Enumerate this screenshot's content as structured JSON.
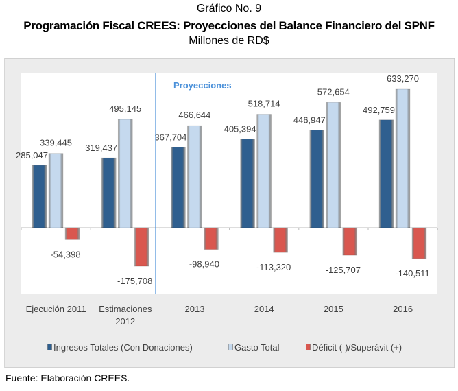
{
  "header": {
    "chart_no": "Gráfico No. 9",
    "title": "Programación Fiscal CREES: Proyecciones del Balance Financiero del SPNF",
    "subtitle": "Millones de RD$"
  },
  "footer": "Fuente: Elaboración CREES.",
  "colors": {
    "ingresos": "#2f5f8f",
    "gasto": "#c5d9ee",
    "deficit": "#d9574f",
    "divider": "#4a90d9",
    "frame": "#ececec"
  },
  "chart_data": {
    "type": "bar",
    "title": "Programación Fiscal CREES: Proyecciones del Balance Financiero del SPNF",
    "ylabel": "Millones de RD$",
    "categories": [
      [
        "Ejecución 2011"
      ],
      [
        "Estimaciones",
        "2012"
      ],
      [
        "2013"
      ],
      [
        "2014"
      ],
      [
        "2015"
      ],
      [
        "2016"
      ]
    ],
    "annotation": "Proyecciones",
    "series": [
      {
        "name": "Ingresos Totales (Con Donaciones)",
        "values": [
          285047,
          319437,
          367704,
          405394,
          446947,
          492759
        ],
        "labels": [
          "285,047",
          "319,437",
          "367,704",
          "405,394",
          "446,947",
          "492,759"
        ]
      },
      {
        "name": "Gasto Total",
        "values": [
          339445,
          495145,
          466644,
          518714,
          572654,
          633270
        ],
        "labels": [
          "339,445",
          "495,145",
          "466,644",
          "518,714",
          "572,654",
          "633,270"
        ]
      },
      {
        "name": "Déficit (-)/Superávit (+)",
        "values": [
          -54398,
          -175708,
          -98940,
          -113320,
          -125707,
          -140511
        ],
        "labels": [
          "-54,398",
          "-175,708",
          "-98,940",
          "-113,320",
          "-125,707",
          "-140,511"
        ]
      }
    ],
    "legend": "bottom",
    "grid": false
  }
}
